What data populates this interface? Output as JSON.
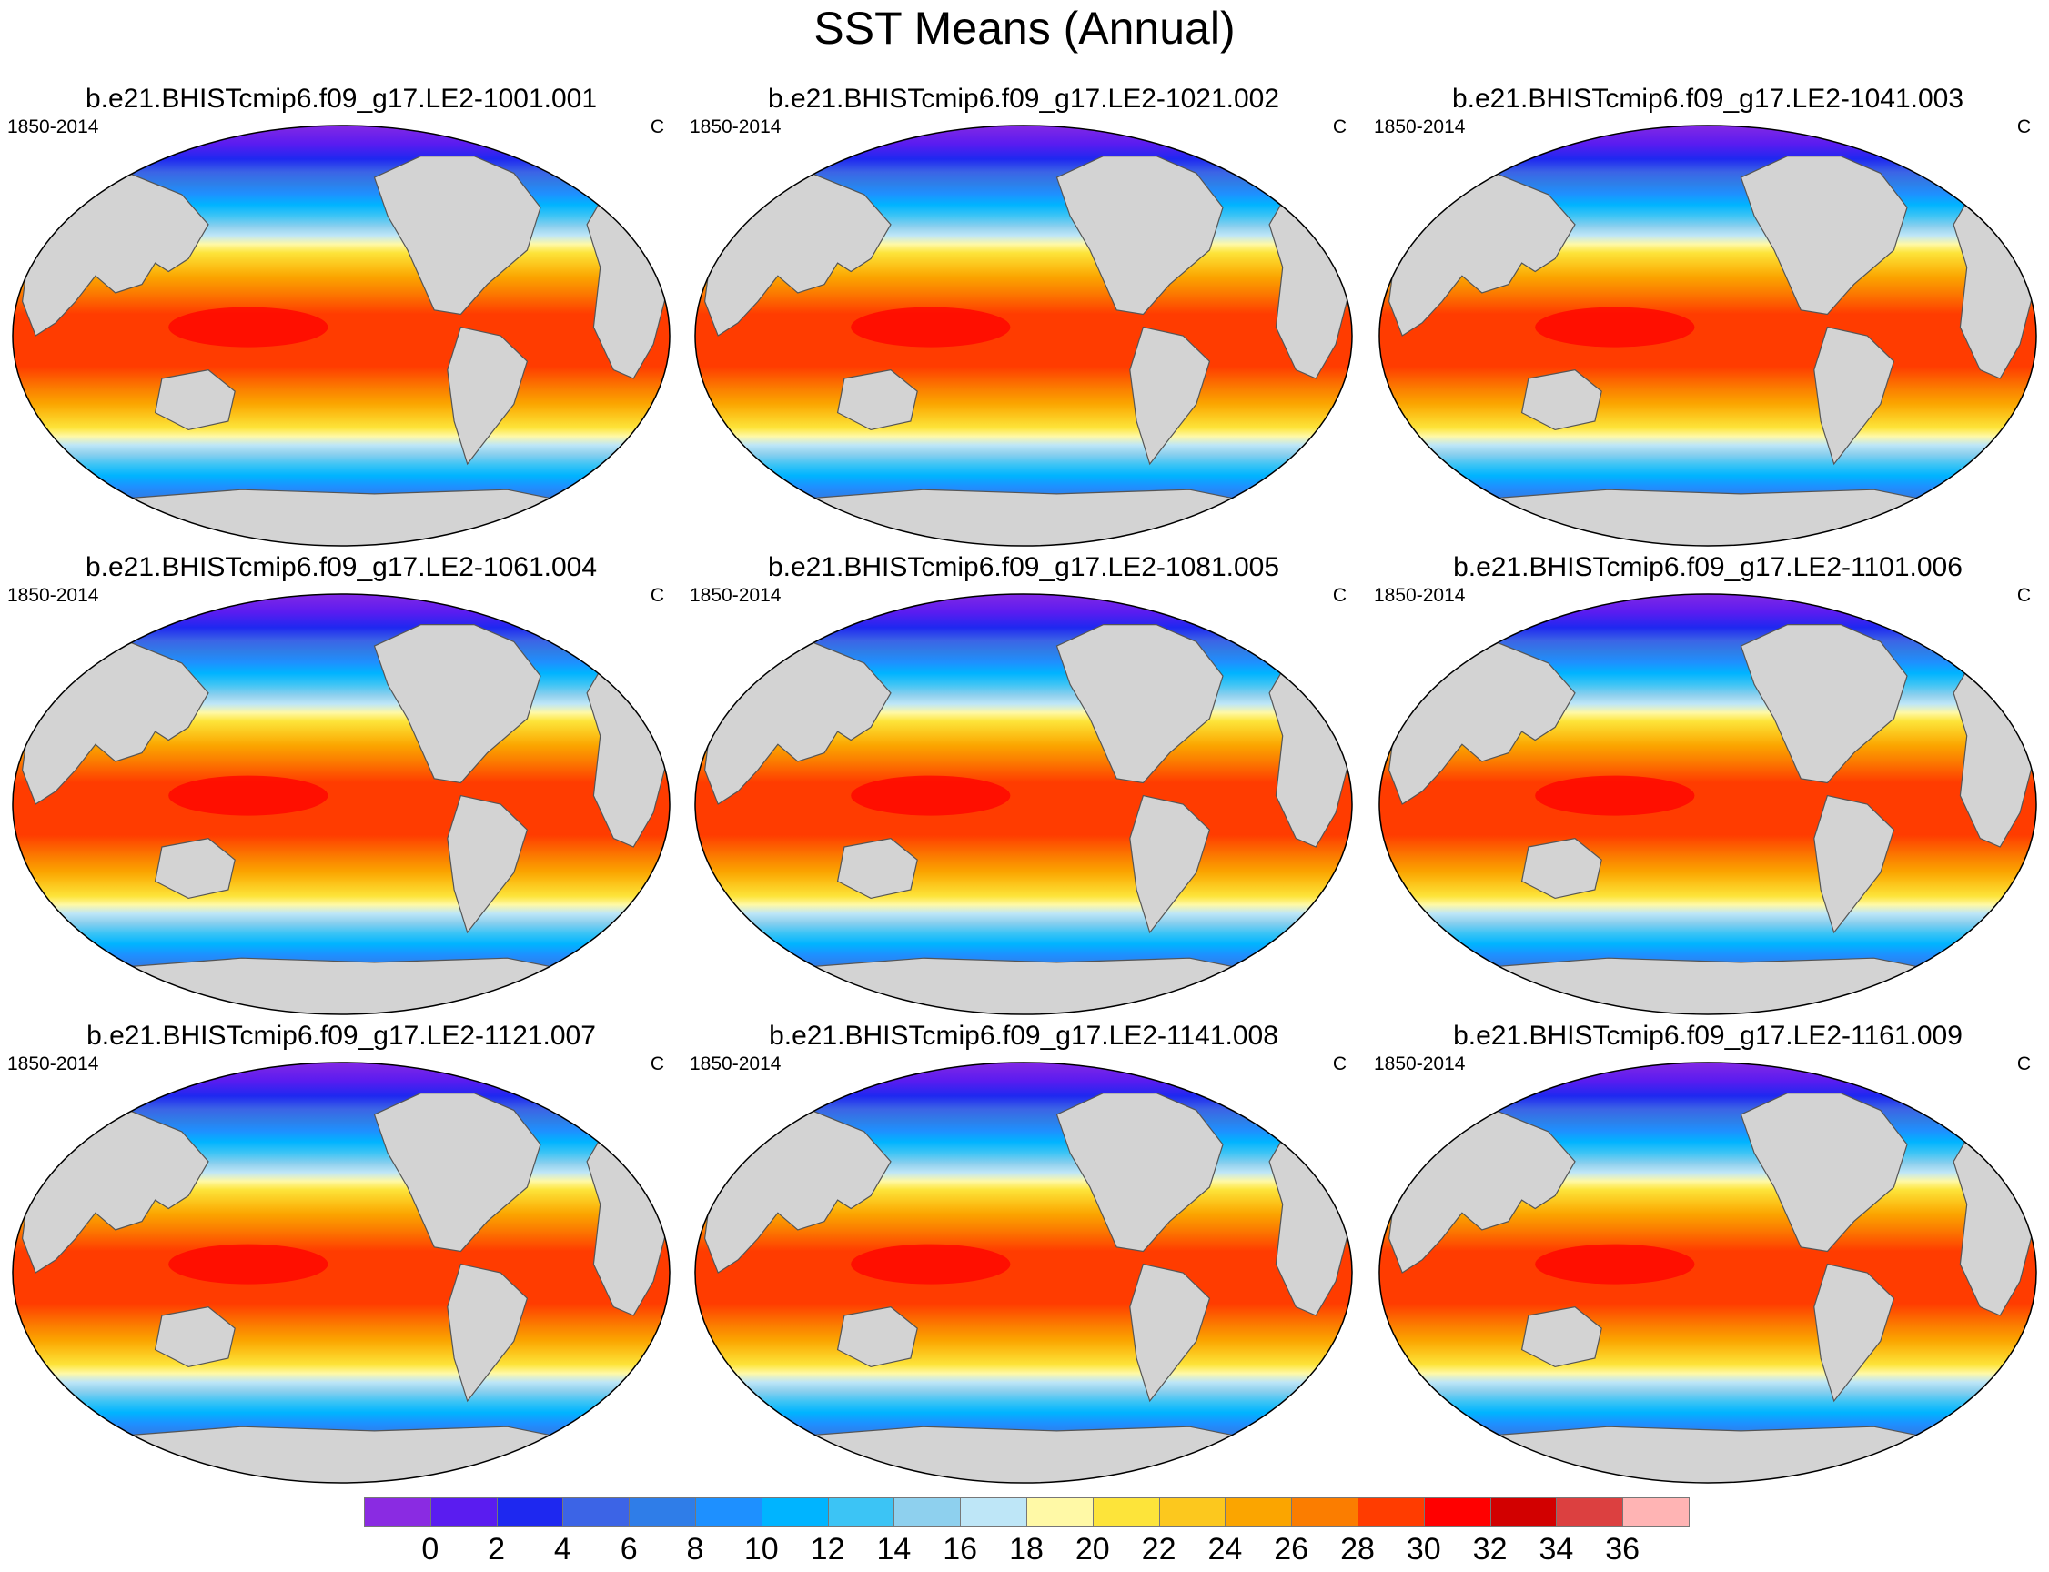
{
  "title": "SST Means (Annual)",
  "panels": [
    {
      "title": "b.e21.BHISTcmip6.f09_g17.LE2-1001.001",
      "period": "1850-2014",
      "units": "C"
    },
    {
      "title": "b.e21.BHISTcmip6.f09_g17.LE2-1021.002",
      "period": "1850-2014",
      "units": "C"
    },
    {
      "title": "b.e21.BHISTcmip6.f09_g17.LE2-1041.003",
      "period": "1850-2014",
      "units": "C"
    },
    {
      "title": "b.e21.BHISTcmip6.f09_g17.LE2-1061.004",
      "period": "1850-2014",
      "units": "C"
    },
    {
      "title": "b.e21.BHISTcmip6.f09_g17.LE2-1081.005",
      "period": "1850-2014",
      "units": "C"
    },
    {
      "title": "b.e21.BHISTcmip6.f09_g17.LE2-1101.006",
      "period": "1850-2014",
      "units": "C"
    },
    {
      "title": "b.e21.BHISTcmip6.f09_g17.LE2-1121.007",
      "period": "1850-2014",
      "units": "C"
    },
    {
      "title": "b.e21.BHISTcmip6.f09_g17.LE2-1141.008",
      "period": "1850-2014",
      "units": "C"
    },
    {
      "title": "b.e21.BHISTcmip6.f09_g17.LE2-1161.009",
      "period": "1850-2014",
      "units": "C"
    }
  ],
  "colorbar": {
    "labels": [
      "0",
      "2",
      "4",
      "6",
      "8",
      "10",
      "12",
      "14",
      "16",
      "18",
      "20",
      "22",
      "24",
      "26",
      "28",
      "30",
      "32",
      "34",
      "36"
    ],
    "colors": [
      "#8a2be2",
      "#5a1cf0",
      "#1e28f0",
      "#3c64e6",
      "#2f7de8",
      "#1e90ff",
      "#00b4ff",
      "#3cc4f5",
      "#8ed0ee",
      "#bee6f7",
      "#fff9a6",
      "#fde43a",
      "#fcc81e",
      "#fba500",
      "#fb7d00",
      "#ff3c00",
      "#ff0000",
      "#d20000",
      "#dc4040",
      "#ffb4b4"
    ]
  },
  "colors": {
    "land": "#d3d3d3",
    "coast": "#555555"
  }
}
